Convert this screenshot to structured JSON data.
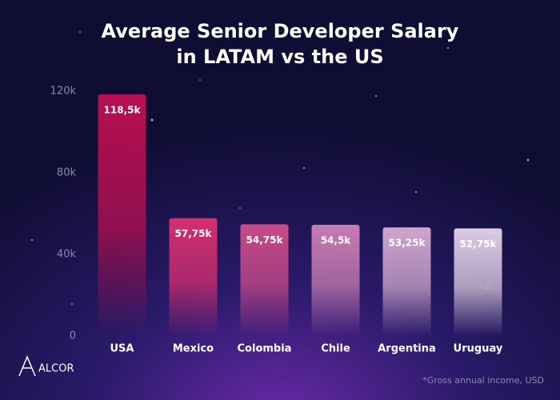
{
  "chart_data": {
    "type": "bar",
    "title": [
      "Average Senior Developer Salary",
      "in LATAM vs the US"
    ],
    "categories": [
      "USA",
      "Mexico",
      "Colombia",
      "Chile",
      "Argentina",
      "Uruguay"
    ],
    "values": [
      118500,
      57750,
      54750,
      54500,
      53250,
      52750
    ],
    "value_labels": [
      "118,5k",
      "57,75k",
      "54,75k",
      "54,5k",
      "53,25k",
      "52,75k"
    ],
    "colors": [
      "#b80f52",
      "#d42f70",
      "#c94a88",
      "#c77cb2",
      "#cfa6cd",
      "#dccbe3"
    ],
    "ylim": [
      0,
      120000
    ],
    "yticks": [
      {
        "value": 0,
        "label": "0"
      },
      {
        "value": 40000,
        "label": "40k"
      },
      {
        "value": 80000,
        "label": "80k"
      },
      {
        "value": 120000,
        "label": "120k"
      }
    ],
    "grid": false,
    "footnote": "*Gross annual income, USD",
    "logo": "ALCOR"
  }
}
